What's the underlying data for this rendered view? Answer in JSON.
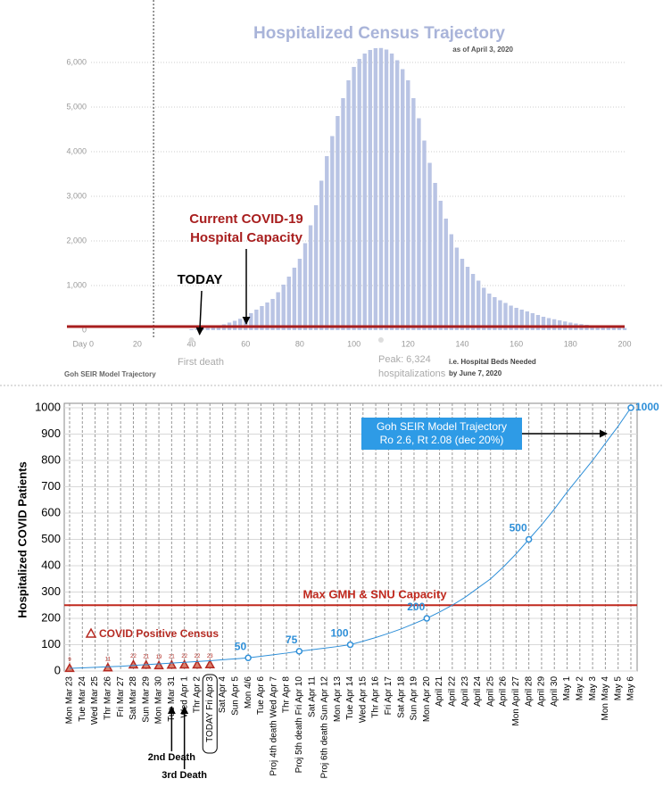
{
  "chart_data": [
    {
      "type": "bar",
      "title": "Hospitalized Census Trajectory",
      "subtitle": "as of April 3, 2020",
      "x": [
        40,
        42,
        44,
        46,
        48,
        50,
        52,
        54,
        56,
        58,
        60,
        62,
        64,
        66,
        68,
        70,
        72,
        74,
        76,
        78,
        80,
        82,
        84,
        86,
        88,
        90,
        92,
        94,
        96,
        98,
        100,
        102,
        104,
        106,
        108,
        110,
        112,
        114,
        116,
        118,
        120,
        122,
        124,
        126,
        128,
        130,
        132,
        134,
        136,
        138,
        140,
        142,
        144,
        146,
        148,
        150,
        152,
        154,
        156,
        158,
        160,
        162,
        164,
        166,
        168,
        170,
        172,
        174,
        176,
        178,
        180,
        182,
        184,
        186,
        188,
        190,
        192,
        194,
        196,
        198,
        200
      ],
      "values": [
        20,
        30,
        40,
        55,
        75,
        100,
        130,
        170,
        210,
        255,
        300,
        380,
        460,
        540,
        620,
        700,
        850,
        1020,
        1200,
        1400,
        1600,
        1950,
        2350,
        2800,
        3350,
        3900,
        4350,
        4800,
        5200,
        5600,
        5900,
        6080,
        6200,
        6280,
        6320,
        6324,
        6290,
        6200,
        6050,
        5850,
        5600,
        5200,
        4750,
        4250,
        3750,
        3300,
        2900,
        2500,
        2150,
        1850,
        1600,
        1420,
        1260,
        1110,
        950,
        820,
        740,
        670,
        610,
        550,
        500,
        460,
        420,
        380,
        340,
        300,
        270,
        245,
        220,
        195,
        170,
        150,
        135,
        120,
        105,
        90,
        82,
        74,
        66,
        58,
        50
      ],
      "color": "#b9c4e4",
      "xlim": [
        -6,
        200
      ],
      "ylim": [
        0,
        6500
      ],
      "xticks": [
        {
          "value": 0,
          "label": "Day 0"
        },
        20,
        40,
        60,
        80,
        100,
        120,
        140,
        160,
        180,
        200
      ],
      "yticks": [
        0,
        {
          "value": 1000,
          "label": "1,000"
        },
        {
          "value": 2000,
          "label": "2,000"
        },
        {
          "value": 3000,
          "label": "3,000"
        },
        {
          "value": 4000,
          "label": "4,000"
        },
        {
          "value": 5000,
          "label": "5,000"
        },
        {
          "value": 6000,
          "label": "6,000"
        }
      ],
      "grid": true,
      "capacity": {
        "label": [
          "Current COVID-19",
          "Hospital Capacity"
        ],
        "value": 80,
        "color": "#a81e1e"
      },
      "today": {
        "label": "TODAY",
        "x": 43
      },
      "vline": 26,
      "first_death": {
        "label": "First death",
        "x": 40
      },
      "peak": {
        "label": [
          "Peak: 6,324",
          "hospitalizations"
        ],
        "x": 110
      },
      "note": [
        "i.e. Hospital Beds Needed",
        "by June 7, 2020"
      ],
      "footer": "Goh SEIR Model Trajectory"
    },
    {
      "type": "line",
      "ylabel": "Hospitalized COVID Patients",
      "categories": [
        "Mon Mar 23",
        "Tue Mar 24",
        "Wed Mar 25",
        "Thr Mar 26",
        "Fri Mar 27",
        "Sat Mar 28",
        "Sun Mar 29",
        "Mon Mar 30",
        "Tue Mar 31",
        "Wed Apr 1",
        "Thr Apr 2",
        "TODAY Fri Apr 3",
        "Sat Apr 4",
        "Sun Apr 5",
        "Mon 4/6",
        "Tue Apr 6",
        "Proj 4th death Wed Apr 7",
        "Thr Apr 8",
        "Proj 5th death Fri Apr 10",
        "Sat Apr 11",
        "Proj 6th death Sun Apr 12",
        "Mon Apr 13",
        "Tue Apr 14",
        "Wed Apr 15",
        "Thr Apr 16",
        "Fri Apr 17",
        "Sat Apr 18",
        "Sun Apr 19",
        "Mon Apr 20",
        "April 21",
        "April 22",
        "April 23",
        "April 24",
        "April 25",
        "April 26",
        "Mon April 27",
        "April 28",
        "April 29",
        "April 30",
        "May 1",
        "May 2",
        "May 3",
        "Mon May 4",
        "May 5",
        "May 6"
      ],
      "ylim": [
        0,
        1000
      ],
      "yticks": [
        0,
        100,
        200,
        300,
        400,
        500,
        600,
        700,
        800,
        900,
        1000
      ],
      "grid": true,
      "series": [
        {
          "name": "COVID Positive Census",
          "color": "#b52a22",
          "marker": "triangle",
          "values": [
            9,
            null,
            null,
            11,
            null,
            22,
            21,
            19,
            21,
            22,
            22,
            23,
            null,
            null,
            null,
            null,
            null,
            null,
            null,
            null,
            null,
            null,
            null,
            null,
            null,
            null,
            null,
            null,
            null,
            null,
            null,
            null,
            null,
            null,
            null,
            null,
            null,
            null,
            null,
            null,
            null,
            null,
            null,
            null,
            null
          ]
        },
        {
          "name": "Goh SEIR Model Trajectory",
          "color": "#2e8fd8",
          "values": [
            10,
            12,
            14,
            16,
            18,
            21,
            24,
            27,
            30,
            33,
            36,
            39,
            43,
            46,
            50,
            56,
            62,
            68,
            75,
            81,
            87,
            93,
            100,
            113,
            127,
            143,
            160,
            180,
            200,
            224,
            250,
            280,
            315,
            350,
            395,
            445,
            500,
            555,
            615,
            680,
            740,
            800,
            865,
            930,
            1000
          ],
          "value_labels": [
            null,
            null,
            null,
            null,
            null,
            null,
            null,
            null,
            null,
            null,
            null,
            null,
            null,
            null,
            "50",
            null,
            null,
            null,
            "75",
            null,
            null,
            null,
            "100",
            null,
            null,
            null,
            null,
            null,
            "200",
            null,
            null,
            null,
            null,
            null,
            null,
            null,
            "500",
            null,
            null,
            null,
            null,
            null,
            null,
            null,
            "1000"
          ]
        }
      ],
      "model_note": "Ro 2.6, Rt 2.08 (dec 20%)",
      "capacity": {
        "label": "Max GMH & SNU Capacity",
        "value": 250,
        "color": "#c0291e"
      },
      "deaths": [
        {
          "label": "2nd Death",
          "index": 8
        },
        {
          "label": "3rd Death",
          "index": 9
        }
      ],
      "today_index": 11
    }
  ]
}
